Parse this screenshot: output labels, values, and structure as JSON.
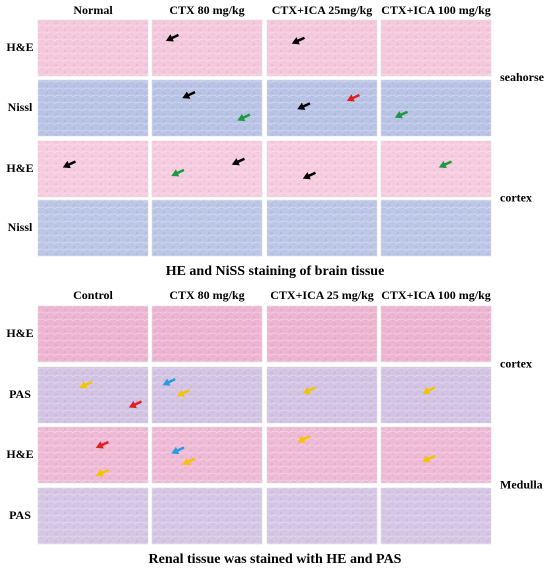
{
  "panels": [
    {
      "columns": [
        "Normal",
        "CTX 80 mg/kg",
        "CTX+ICA 25mg/kg",
        "CTX+ICA 100 mg/kg"
      ],
      "rows": [
        "H&E",
        "Nissl",
        "H&E",
        "Nissl"
      ],
      "side_labels": [
        "seahorse",
        "cortex"
      ],
      "caption": "HE and NiSS staining of brain tissue"
    },
    {
      "columns": [
        "Control",
        "CTX 80 mg/kg",
        "CTX+ICA 25 mg/kg",
        "CTX+ICA 100 mg/kg"
      ],
      "rows": [
        "H&E",
        "PAS",
        "H&E",
        "PAS"
      ],
      "side_labels": [
        "cortex",
        "Medulla"
      ],
      "caption": "Renal tissue was stained with HE and PAS"
    }
  ]
}
